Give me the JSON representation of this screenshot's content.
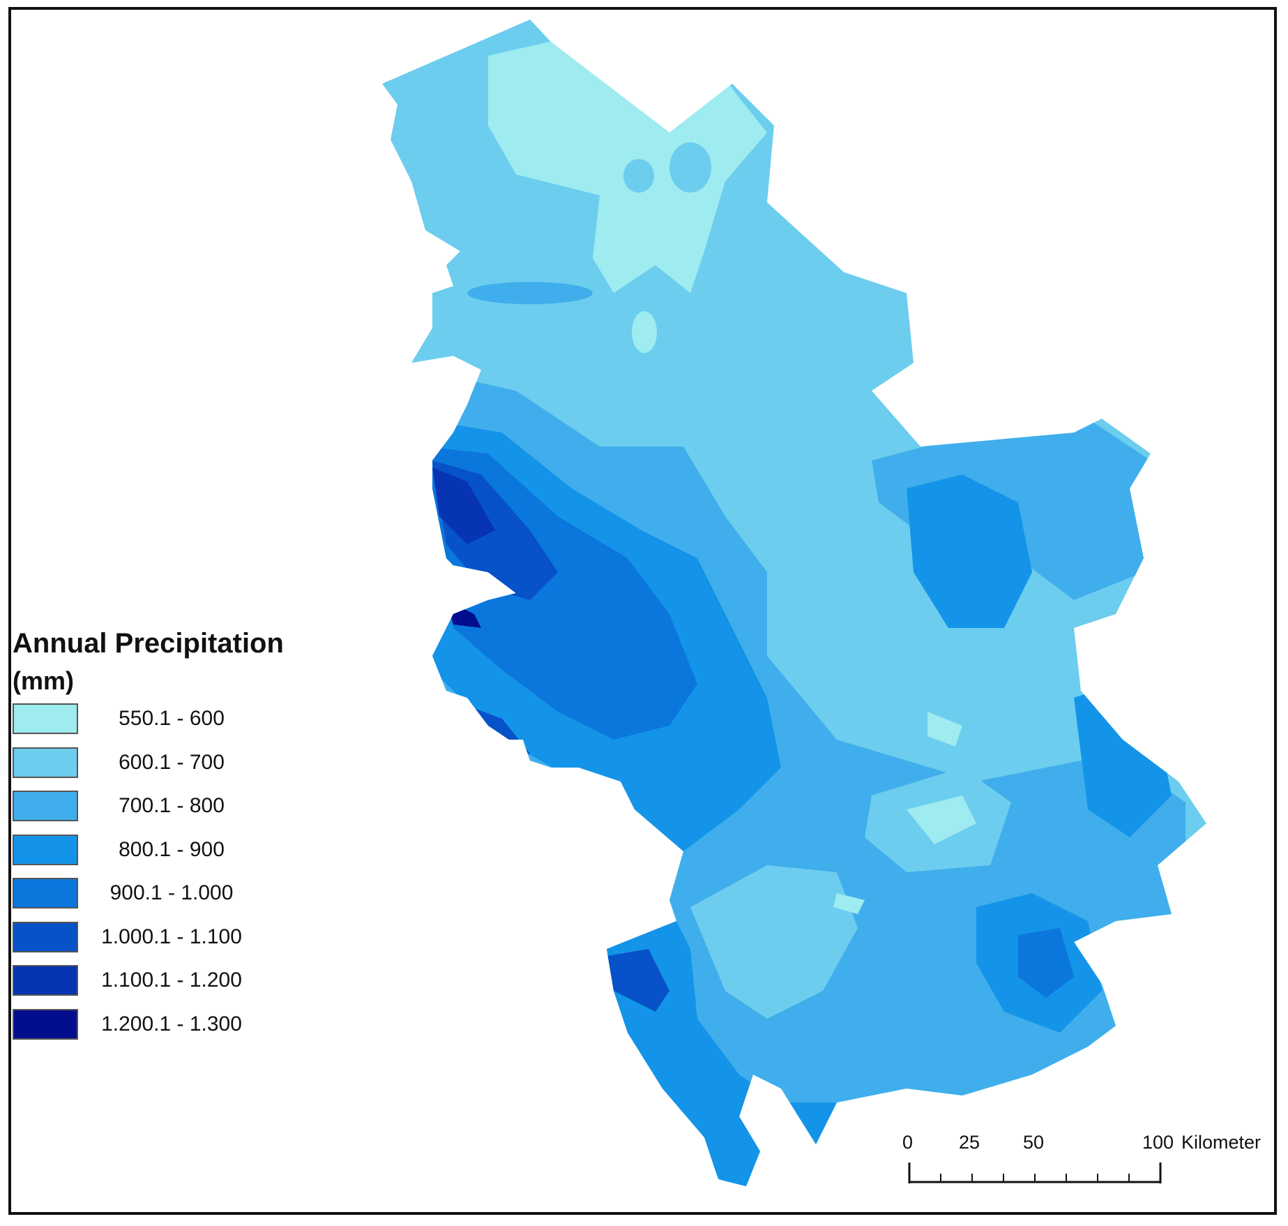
{
  "legend": {
    "title": "Annual Precipitation",
    "unit": "(mm)",
    "classes": [
      {
        "label": "550.1 - 600",
        "color": "#9EEBF0"
      },
      {
        "label": "600.1 - 700",
        "color": "#6CCDEE"
      },
      {
        "label": "700.1 - 800",
        "color": "#40AEEC"
      },
      {
        "label": "800.1 - 900",
        "color": "#1494E8"
      },
      {
        "label": "900.1 - 1.000",
        "color": "#0B77DC"
      },
      {
        "label": "1.000.1 - 1.100",
        "color": "#0752C8"
      },
      {
        "label": "1.100.1 - 1.200",
        "color": "#0634B2"
      },
      {
        "label": "1.200.1 - 1.300",
        "color": "#020E8E"
      }
    ]
  },
  "scale_bar": {
    "ticks": [
      "0",
      "25",
      "50",
      "100"
    ],
    "unit": "Kilometer"
  }
}
